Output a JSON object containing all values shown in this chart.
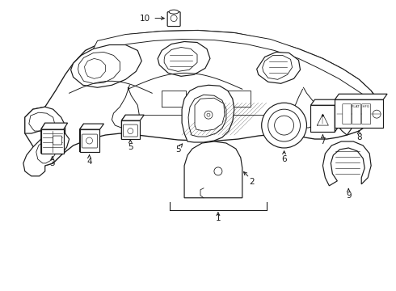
{
  "bg_color": "#ffffff",
  "line_color": "#1a1a1a",
  "fig_width": 4.9,
  "fig_height": 3.6,
  "dpi": 100,
  "lw": 0.85,
  "fontsize": 7.5
}
